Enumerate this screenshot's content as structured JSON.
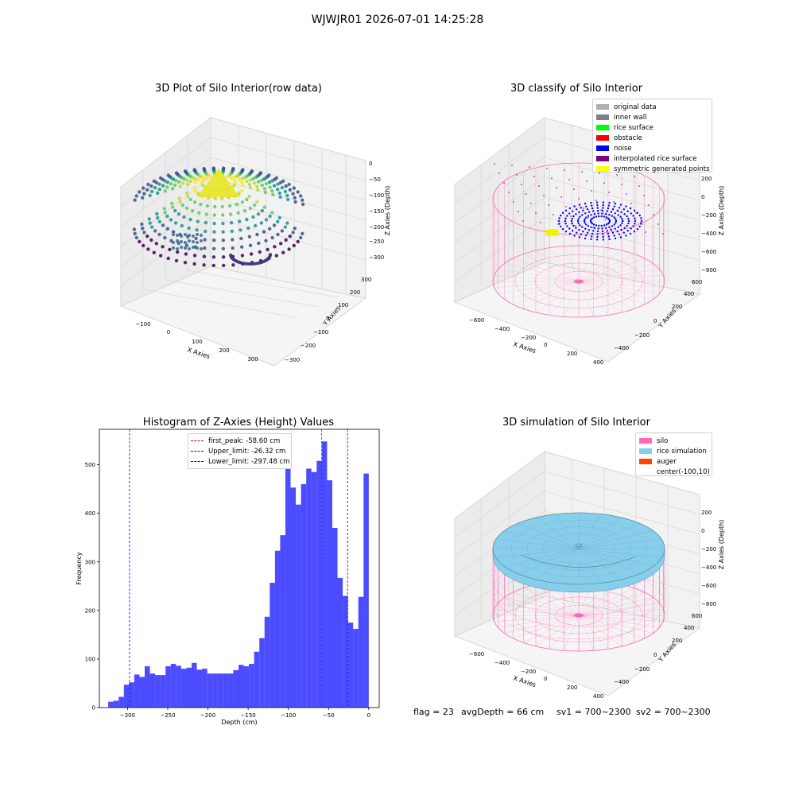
{
  "suptitle": "WJWJR01 2026-07-01 14:25:28",
  "colors": {
    "silo": "#ff69b4",
    "rice_sim": "#87ceeb",
    "auger": "#ff4500",
    "hist_bar": "#0000ff",
    "peak_line": "#ff0000",
    "limit_line": "#0000ff"
  },
  "chart_data": [
    {
      "type": "scatter",
      "title": "3D Plot of Silo Interior(row data)",
      "x_axis_label": "X Axies",
      "y_axis_label": "Y Axies",
      "z_axis_label": "Z Axies (Depth)",
      "x_ticks": [
        "−100",
        "0",
        "100",
        "200",
        "300"
      ],
      "y_ticks": [
        "−300",
        "−200",
        "−100",
        "0",
        "100",
        "200",
        "300"
      ],
      "z_ticks": [
        "0",
        "−50",
        "−100",
        "−150",
        "−200",
        "−250",
        "−300"
      ],
      "zlim": [
        -330,
        0
      ],
      "colormap": "viridis"
    },
    {
      "type": "scatter",
      "title": "3D classify of Silo Interior",
      "x_axis_label": "X Axies",
      "y_axis_label": "Y Axies",
      "z_axis_label": "Z Axies (Depth)",
      "x_ticks": [
        "−600",
        "−400",
        "−200",
        "0",
        "200",
        "400"
      ],
      "y_ticks": [
        "−400",
        "−200",
        "0",
        "200",
        "400",
        "600"
      ],
      "z_ticks": [
        "200",
        "0",
        "−200",
        "−400",
        "−600",
        "−800"
      ],
      "legend": [
        {
          "label": "original data",
          "color": "#b0b0b0"
        },
        {
          "label": "inner wall",
          "color": "#808080"
        },
        {
          "label": "rice surface",
          "color": "#00ff00"
        },
        {
          "label": "obstacle",
          "color": "#ff0000"
        },
        {
          "label": "noise",
          "color": "#0000ff"
        },
        {
          "label": "interpolated rice surface",
          "color": "#800080"
        },
        {
          "label": "symmetric generated points",
          "color": "#ffff00"
        }
      ]
    },
    {
      "type": "bar",
      "title": "Histogram of Z-Axies (Height) Values",
      "xlabel": "Depth (cm)",
      "ylabel": "Frequency",
      "xlim": [
        -335,
        13
      ],
      "ylim": [
        0,
        573
      ],
      "x_ticks": [
        "−300",
        "−250",
        "−200",
        "−150",
        "−100",
        "−50",
        "0"
      ],
      "y_ticks": [
        "0",
        "100",
        "200",
        "300",
        "400",
        "500"
      ],
      "bin_start": -324,
      "bin_width": 6.48,
      "values": [
        12,
        14,
        22,
        47,
        52,
        68,
        63,
        85,
        70,
        67,
        67,
        85,
        90,
        86,
        80,
        82,
        92,
        78,
        80,
        70,
        70,
        70,
        70,
        70,
        77,
        88,
        85,
        90,
        115,
        143,
        187,
        257,
        323,
        355,
        500,
        453,
        418,
        460,
        492,
        485,
        508,
        548,
        468,
        370,
        267,
        230,
        175,
        162,
        228,
        482
      ],
      "lines": [
        {
          "label": "first_peak: -58.60 cm",
          "x": -58.6,
          "color": "#ff0000"
        },
        {
          "label": "Upper_limit: -26.32 cm",
          "x": -26.32,
          "color": "#0000ff"
        },
        {
          "label": "Lower_limit: -297.48 cm",
          "x": -297.48,
          "color": "#0000ff"
        }
      ]
    },
    {
      "type": "surface",
      "title": "3D simulation of Silo Interior",
      "x_axis_label": "X Axies",
      "y_axis_label": "Y Axies",
      "z_axis_label": "Z Axies (Depth)",
      "x_ticks": [
        "−600",
        "−400",
        "−200",
        "0",
        "200",
        "400"
      ],
      "y_ticks": [
        "−400",
        "−200",
        "0",
        "200",
        "400",
        "600"
      ],
      "z_ticks": [
        "200",
        "0",
        "−200",
        "−400",
        "−600",
        "−800"
      ],
      "legend": [
        {
          "label": "silo",
          "color": "#ff69b4"
        },
        {
          "label": "rice simulation",
          "color": "#87ceeb"
        },
        {
          "label": "auger",
          "color": "#ff4500"
        },
        {
          "label": "center(-100,10)",
          "color": ""
        }
      ]
    }
  ],
  "footer": {
    "flag": "flag = 23",
    "avg_depth": "avgDepth = 66 cm",
    "sv1": "sv1 = 700~2300",
    "sv2": "sv2 = 700~2300"
  }
}
